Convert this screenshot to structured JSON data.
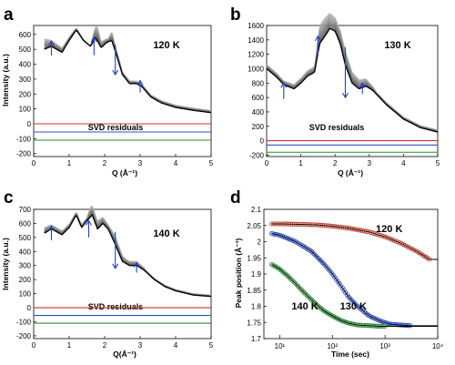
{
  "chart_data": [
    {
      "panel": "a",
      "type": "line",
      "temperature_label": "120 K",
      "residuals_label": "SVD residuals",
      "xlabel": "Q (Å⁻¹)",
      "ylabel": "Intensity (a.u.)",
      "xlim": [
        0,
        5
      ],
      "ylim": [
        -220,
        660
      ],
      "xticks": [
        0,
        1,
        2,
        3,
        4,
        5
      ],
      "yticks": [
        -200,
        -100,
        0,
        100,
        200,
        300,
        400,
        500,
        600
      ],
      "curve": {
        "x": [
          0.3,
          0.5,
          0.8,
          1.0,
          1.2,
          1.4,
          1.6,
          1.75,
          1.9,
          2.05,
          2.2,
          2.35,
          2.5,
          2.7,
          2.9,
          3.05,
          3.3,
          3.6,
          4.0,
          4.5,
          5.0
        ],
        "y": [
          500,
          520,
          480,
          560,
          630,
          560,
          520,
          580,
          510,
          545,
          560,
          450,
          330,
          270,
          270,
          250,
          180,
          140,
          110,
          90,
          75
        ]
      },
      "spread": {
        "x": [
          0.3,
          0.5,
          1.6,
          1.7,
          1.8,
          1.9,
          2.1,
          2.2,
          2.3,
          2.5,
          3.0
        ],
        "y": [
          70,
          40,
          0,
          60,
          90,
          40,
          20,
          60,
          40,
          20,
          15
        ]
      },
      "arrows": [
        {
          "x": 0.5,
          "from": 460,
          "to": 555
        },
        {
          "x": 1.7,
          "from": 460,
          "to": 580
        },
        {
          "x": 2.3,
          "from": 530,
          "to": 330
        },
        {
          "x": 3.0,
          "from": 210,
          "to": 290
        }
      ],
      "residual_offsets": [
        0,
        -55,
        -110
      ]
    },
    {
      "panel": "b",
      "type": "line",
      "temperature_label": "130 K",
      "residuals_label": "SVD residuals",
      "xlabel": "Q (Å⁻¹)",
      "ylabel": "",
      "xlim": [
        0,
        5
      ],
      "ylim": [
        -220,
        1600
      ],
      "xticks": [
        0,
        1,
        2,
        3,
        4,
        5
      ],
      "yticks": [
        -200,
        0,
        200,
        400,
        600,
        800,
        1000,
        1200,
        1400,
        1600
      ],
      "curve": {
        "x": [
          0.0,
          0.3,
          0.5,
          0.8,
          1.0,
          1.2,
          1.4,
          1.55,
          1.7,
          1.85,
          2.0,
          2.15,
          2.3,
          2.5,
          2.7,
          2.9,
          3.1,
          3.5,
          4.0,
          4.5,
          5.0
        ],
        "y": [
          1000,
          880,
          780,
          720,
          800,
          900,
          950,
          1350,
          1450,
          1560,
          1520,
          1350,
          1050,
          800,
          720,
          760,
          700,
          500,
          300,
          180,
          120
        ]
      },
      "spread": {
        "x": [
          0.0,
          0.5,
          1.4,
          1.55,
          1.7,
          1.9,
          2.1,
          2.3,
          2.5,
          2.9,
          3.2
        ],
        "y": [
          60,
          50,
          80,
          250,
          250,
          200,
          180,
          200,
          150,
          100,
          30
        ]
      },
      "arrows": [
        {
          "x": 0.5,
          "from": 580,
          "to": 800
        },
        {
          "x": 1.5,
          "from": 1200,
          "to": 1450
        },
        {
          "x": 2.3,
          "from": 1300,
          "to": 600
        },
        {
          "x": 2.8,
          "from": 650,
          "to": 800
        }
      ],
      "residual_offsets": [
        0,
        -60,
        -160
      ]
    },
    {
      "panel": "c",
      "type": "line",
      "temperature_label": "140 K",
      "residuals_label": "SVD residuals",
      "xlabel": "Q(Å⁻¹)",
      "ylabel": "Intensity (a.u.)",
      "xlim": [
        0,
        5
      ],
      "ylim": [
        -220,
        700
      ],
      "xticks": [
        0,
        1,
        2,
        3,
        4,
        5
      ],
      "yticks": [
        -200,
        -100,
        0,
        100,
        200,
        300,
        400,
        500,
        600,
        700
      ],
      "curve": {
        "x": [
          0.3,
          0.5,
          0.8,
          1.0,
          1.2,
          1.35,
          1.5,
          1.65,
          1.8,
          1.95,
          2.1,
          2.3,
          2.5,
          2.7,
          2.9,
          3.1,
          3.4,
          3.7,
          4.0,
          4.5,
          5.0
        ],
        "y": [
          530,
          560,
          520,
          570,
          660,
          570,
          620,
          660,
          560,
          600,
          560,
          450,
          330,
          300,
          300,
          270,
          200,
          150,
          120,
          90,
          80
        ]
      },
      "spread": {
        "x": [
          0.3,
          0.5,
          1.5,
          1.6,
          1.7,
          1.9,
          2.1,
          2.3,
          2.6,
          2.9,
          3.2
        ],
        "y": [
          40,
          30,
          20,
          70,
          60,
          50,
          30,
          60,
          30,
          30,
          10
        ]
      },
      "arrows": [
        {
          "x": 0.5,
          "from": 480,
          "to": 580
        },
        {
          "x": 1.55,
          "from": 500,
          "to": 620
        },
        {
          "x": 2.3,
          "from": 540,
          "to": 280
        },
        {
          "x": 2.9,
          "from": 250,
          "to": 320
        }
      ],
      "residual_offsets": [
        0,
        -55,
        -110
      ]
    },
    {
      "panel": "d",
      "type": "scatter",
      "xlabel": "Time (sec)",
      "ylabel": "Peak position (Å⁻¹)",
      "xscale": "log",
      "xlim": [
        5,
        10000
      ],
      "ylim": [
        1.7,
        2.1
      ],
      "xticks": [
        10,
        100,
        1000,
        10000
      ],
      "xticklabels": [
        "10¹",
        "10²",
        "10³",
        "10⁴"
      ],
      "yticks": [
        1.7,
        1.75,
        1.8,
        1.85,
        1.9,
        1.95,
        2.0,
        2.05,
        2.1
      ],
      "yticklabels": [
        "1.7",
        "1.75",
        "1.8",
        "1.85",
        "1.9",
        "1.95",
        "2",
        "2.05",
        "2.1"
      ],
      "series": [
        {
          "name": "120 K",
          "color": "#c0392b",
          "x": [
            7,
            10,
            20,
            50,
            100,
            200,
            500,
            1000,
            2000,
            4000,
            7000
          ],
          "y": [
            2.055,
            2.055,
            2.054,
            2.052,
            2.048,
            2.042,
            2.03,
            2.015,
            1.995,
            1.97,
            1.945
          ]
        },
        {
          "name": "130 K",
          "color": "#1f3fbf",
          "x": [
            7,
            10,
            20,
            40,
            70,
            100,
            150,
            200,
            300,
            500,
            800,
            1200,
            2000,
            3000
          ],
          "y": [
            2.025,
            2.02,
            2.0,
            1.97,
            1.93,
            1.9,
            1.86,
            1.83,
            1.8,
            1.77,
            1.755,
            1.745,
            1.742,
            1.74
          ]
        },
        {
          "name": "140 K",
          "color": "#2e8b3a",
          "x": [
            7,
            10,
            15,
            20,
            30,
            50,
            70,
            100,
            150,
            200,
            300,
            500,
            800,
            1000
          ],
          "y": [
            1.93,
            1.915,
            1.89,
            1.87,
            1.84,
            1.805,
            1.785,
            1.77,
            1.755,
            1.748,
            1.742,
            1.74,
            1.738,
            1.738
          ]
        }
      ],
      "fit_color": "#000000"
    }
  ]
}
